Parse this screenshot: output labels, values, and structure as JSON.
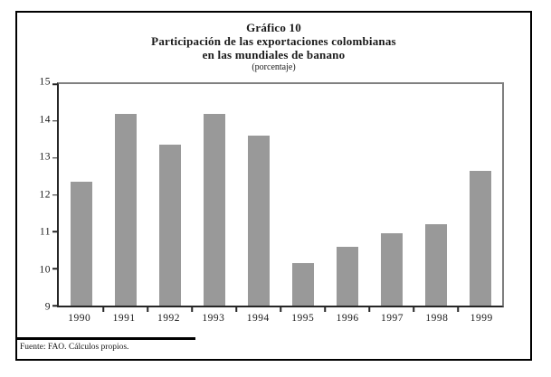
{
  "title": {
    "line1": "Gráfico 10",
    "line2": "Participación de las exportaciones colombianas",
    "line3": "en las mundiales de banano",
    "units": "(porcentaje)"
  },
  "footer": {
    "source": "Fuente: FAO. Cálculos propios."
  },
  "colors": {
    "bar": "#999999",
    "axis_dark": "#262626",
    "plot_frame_gray": "#808080",
    "outer_border": "#000000",
    "background": "#ffffff"
  },
  "chart_data": {
    "type": "bar",
    "title": "Gráfico 10 — Participación de las exportaciones colombianas en las mundiales de banano (porcentaje)",
    "categories": [
      "1990",
      "1991",
      "1992",
      "1993",
      "1994",
      "1995",
      "1996",
      "1997",
      "1998",
      "1999"
    ],
    "values": [
      12.35,
      14.2,
      13.35,
      14.2,
      13.6,
      10.15,
      10.6,
      10.95,
      11.2,
      12.65
    ],
    "xlabel": "",
    "ylabel": "",
    "ylim": [
      9,
      15
    ],
    "yticks": [
      9,
      10,
      11,
      12,
      13,
      14,
      15
    ],
    "grid": false,
    "legend": false,
    "bar_color": "#999999"
  }
}
